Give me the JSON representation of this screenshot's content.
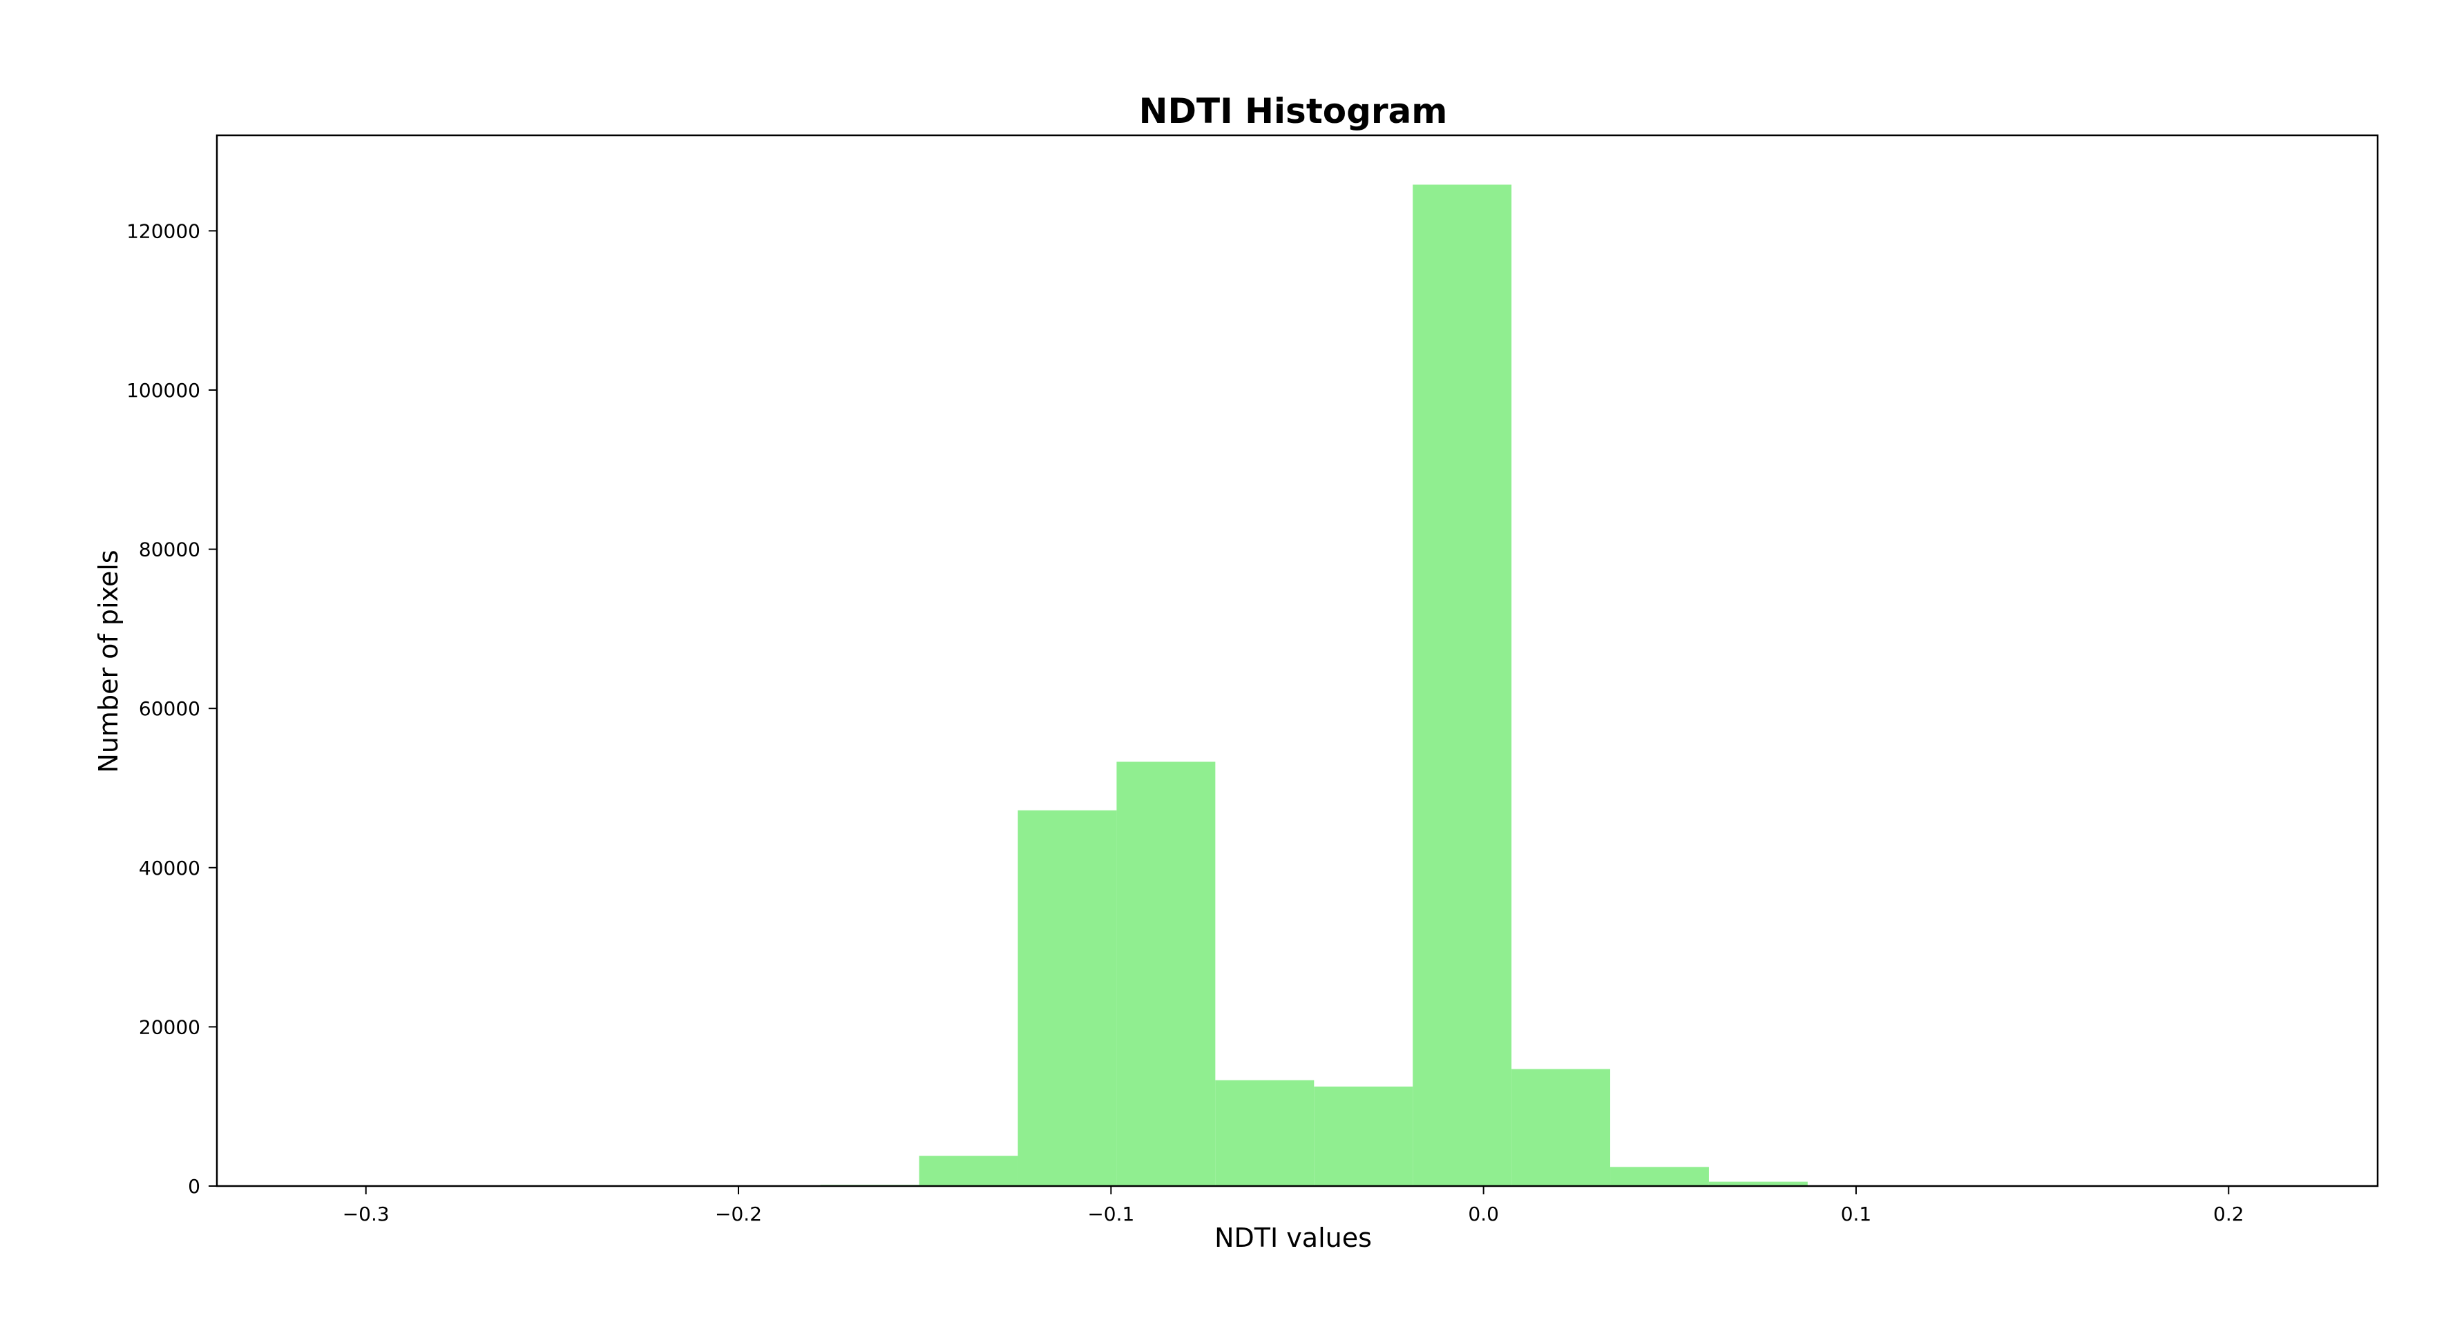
{
  "chart_data": {
    "type": "bar",
    "title": "NDTI Histogram",
    "xlabel": "NDTI values",
    "ylabel": "Number of pixels",
    "xlim": [
      -0.34,
      0.24
    ],
    "ylim": [
      0,
      132000
    ],
    "x_ticks": [
      -0.3,
      -0.2,
      -0.1,
      0.0,
      0.1,
      0.2
    ],
    "x_tick_labels": [
      "−0.3",
      "−0.2",
      "−0.1",
      "0.0",
      "0.1",
      "0.2"
    ],
    "y_ticks": [
      0,
      20000,
      40000,
      60000,
      80000,
      100000,
      120000
    ],
    "y_tick_labels": [
      "0",
      "20000",
      "40000",
      "60000",
      "80000",
      "100000",
      "120000"
    ],
    "grid": false,
    "bar_color": "#90ee90",
    "bins": [
      {
        "x0": -0.2045,
        "x1": -0.178,
        "count": 20
      },
      {
        "x0": -0.178,
        "x1": -0.1515,
        "count": 150
      },
      {
        "x0": -0.1515,
        "x1": -0.125,
        "count": 3800
      },
      {
        "x0": -0.125,
        "x1": -0.0985,
        "count": 47200
      },
      {
        "x0": -0.0985,
        "x1": -0.072,
        "count": 53300
      },
      {
        "x0": -0.072,
        "x1": -0.0455,
        "count": 13300
      },
      {
        "x0": -0.0455,
        "x1": -0.019,
        "count": 12500
      },
      {
        "x0": -0.019,
        "x1": 0.0075,
        "count": 125800
      },
      {
        "x0": 0.0075,
        "x1": 0.034,
        "count": 14700
      },
      {
        "x0": 0.034,
        "x1": 0.0605,
        "count": 2400
      },
      {
        "x0": 0.0605,
        "x1": 0.087,
        "count": 550
      },
      {
        "x0": 0.087,
        "x1": 0.1135,
        "count": 80
      },
      {
        "x0": 0.1135,
        "x1": 0.14,
        "count": 10
      }
    ]
  }
}
